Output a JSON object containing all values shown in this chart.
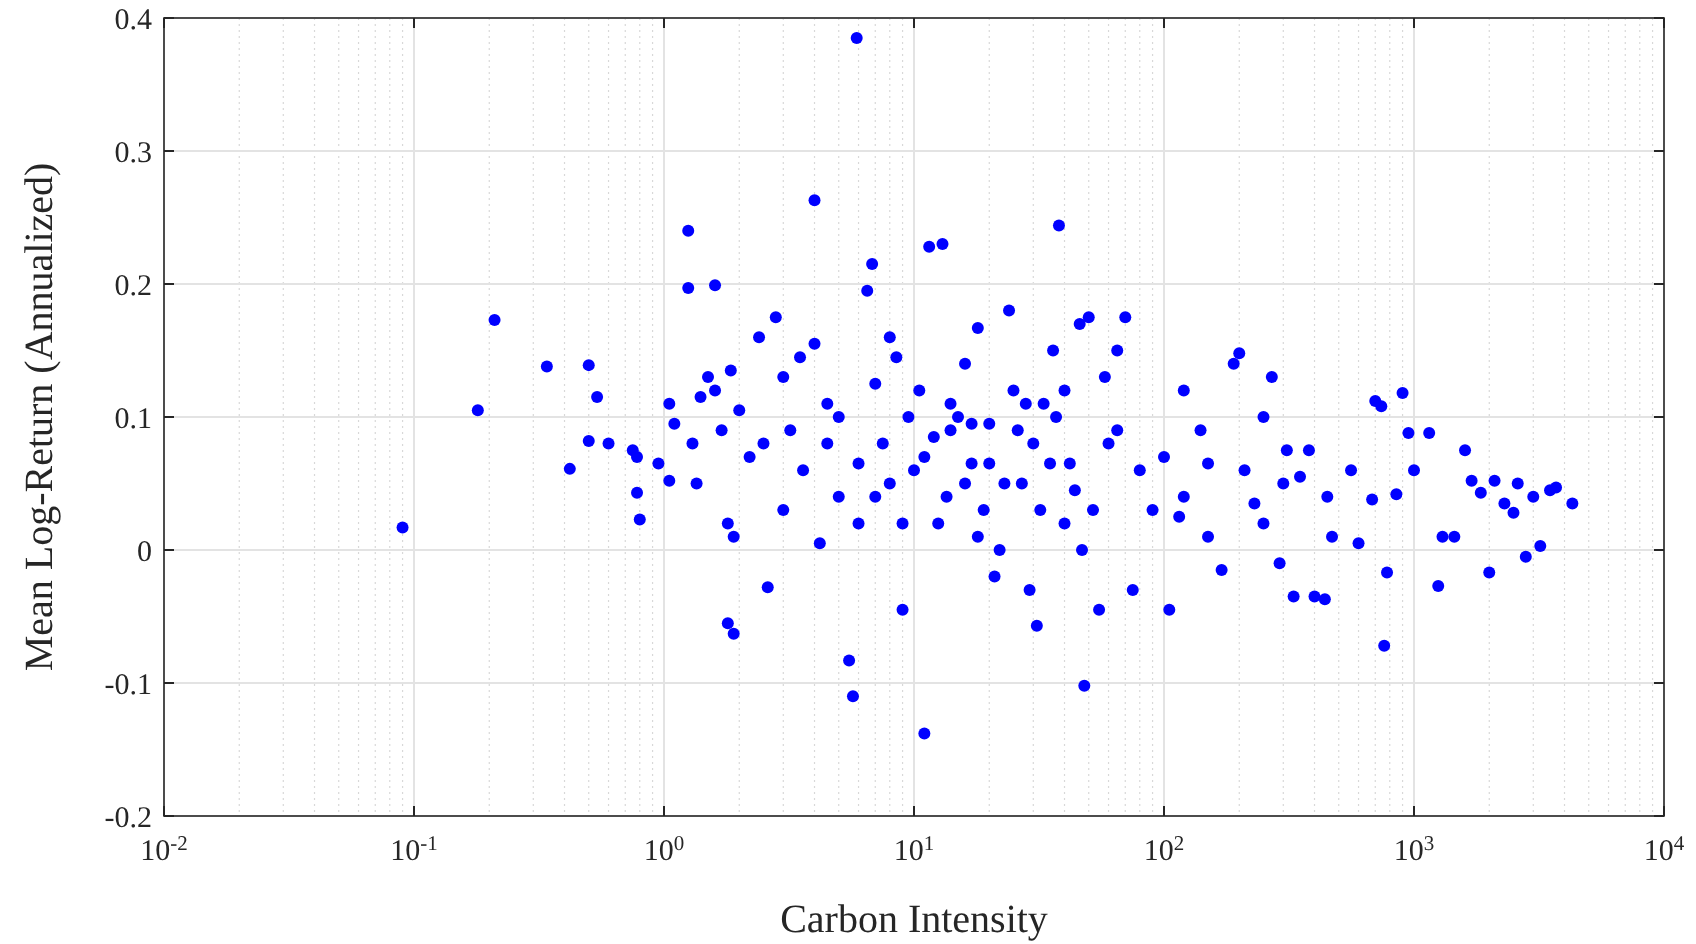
{
  "chart_data": {
    "type": "scatter",
    "xlabel": "Carbon Intensity",
    "ylabel": "Mean Log-Return (Annualized)",
    "log": "x",
    "grid": true,
    "marker": "circle",
    "xlim": [
      0.01,
      10000
    ],
    "ylim": [
      -0.2,
      0.4
    ],
    "xticks": [
      {
        "value": 0.01,
        "label": "10$^{-2}$"
      },
      {
        "value": 0.1,
        "label": "10$^{-1}$"
      },
      {
        "value": 1,
        "label": "10$^{0}$"
      },
      {
        "value": 10,
        "label": "10$^{1}$"
      },
      {
        "value": 100,
        "label": "10$^{2}$"
      },
      {
        "value": 1000,
        "label": "10$^{3}$"
      },
      {
        "value": 10000,
        "label": "10$^{4}$"
      }
    ],
    "yticks": [
      -0.2,
      -0.1,
      0,
      0.1,
      0.2,
      0.3,
      0.4
    ],
    "series": [
      {
        "color": "#0000ff",
        "x": [
          0.09,
          0.18,
          0.21,
          0.34,
          0.42,
          0.5,
          0.54,
          0.5,
          0.6,
          0.75,
          0.78,
          0.8,
          0.78,
          0.95,
          1.05,
          1.05,
          1.1,
          1.25,
          1.25,
          1.3,
          1.35,
          1.4,
          1.5,
          1.6,
          1.6,
          1.7,
          1.8,
          1.8,
          1.9,
          1.9,
          1.85,
          2.0,
          2.2,
          2.4,
          2.6,
          2.8,
          3.0,
          3.2,
          3.5,
          3.6,
          4.0,
          4.0,
          4.2,
          4.5,
          5.0,
          5.5,
          5.7,
          5.9,
          6.0,
          6.5,
          6.8,
          7.0,
          7.5,
          8.0,
          8.5,
          9.0,
          9.5,
          10,
          10.5,
          11,
          11.5,
          13,
          12,
          13.5,
          15,
          16,
          17,
          18,
          19,
          20,
          22,
          24,
          25,
          27,
          29,
          30,
          31,
          33,
          36,
          38,
          40,
          42,
          46,
          48,
          50,
          52,
          55,
          58,
          60,
          65,
          70,
          75,
          80,
          90,
          100,
          105,
          115,
          120,
          140,
          150,
          170,
          190,
          200,
          210,
          230,
          250,
          270,
          290,
          310,
          330,
          350,
          380,
          400,
          440,
          470,
          560,
          600,
          680,
          700,
          740,
          760,
          780,
          850,
          900,
          950,
          1000,
          1150,
          1250,
          1300,
          1450,
          1600,
          1700,
          1850,
          2000,
          2100,
          2300,
          2500,
          2600,
          2800,
          3000,
          3200,
          3500,
          3700,
          4300,
          11,
          12.5,
          14,
          14,
          16,
          17,
          18,
          20,
          21,
          23,
          26,
          28,
          32,
          35,
          37,
          40,
          44,
          47,
          5,
          6,
          8,
          9,
          3,
          2.5,
          4.5,
          7,
          150,
          300,
          250,
          450,
          120,
          65
        ],
        "values": [
          0.017,
          0.105,
          0.173,
          0.138,
          0.061,
          0.139,
          0.115,
          0.082,
          0.08,
          0.075,
          0.043,
          0.023,
          0.07,
          0.065,
          0.052,
          0.11,
          0.095,
          0.24,
          0.197,
          0.08,
          0.05,
          0.115,
          0.13,
          0.199,
          0.12,
          0.09,
          0.02,
          -0.055,
          -0.063,
          0.01,
          0.135,
          0.105,
          0.07,
          0.16,
          -0.028,
          0.175,
          0.13,
          0.09,
          0.145,
          0.06,
          0.263,
          0.155,
          0.005,
          0.11,
          0.04,
          -0.083,
          -0.11,
          0.385,
          0.065,
          0.195,
          0.215,
          0.125,
          0.08,
          0.16,
          0.145,
          -0.045,
          0.1,
          0.06,
          0.12,
          -0.138,
          0.228,
          0.23,
          0.085,
          0.04,
          0.1,
          0.14,
          0.065,
          0.167,
          0.03,
          0.095,
          0.0,
          0.18,
          0.12,
          0.05,
          -0.03,
          0.08,
          -0.057,
          0.11,
          0.15,
          0.244,
          0.02,
          0.065,
          0.17,
          -0.102,
          0.175,
          0.03,
          -0.045,
          0.13,
          0.08,
          0.15,
          0.175,
          -0.03,
          0.06,
          0.03,
          0.07,
          -0.045,
          0.025,
          0.04,
          0.09,
          0.065,
          -0.015,
          0.14,
          0.148,
          0.06,
          0.035,
          0.1,
          0.13,
          -0.01,
          0.075,
          -0.035,
          0.055,
          0.075,
          -0.035,
          -0.037,
          0.01,
          0.06,
          0.005,
          0.038,
          0.112,
          0.108,
          -0.072,
          -0.017,
          0.042,
          0.118,
          0.088,
          0.06,
          0.088,
          -0.027,
          0.01,
          0.01,
          0.075,
          0.052,
          0.043,
          -0.017,
          0.052,
          0.035,
          0.028,
          0.05,
          -0.005,
          0.04,
          0.003,
          0.045,
          0.047,
          0.035,
          0.07,
          0.02,
          0.09,
          0.11,
          0.05,
          0.095,
          0.01,
          0.065,
          -0.02,
          0.05,
          0.09,
          0.11,
          0.03,
          0.065,
          0.1,
          0.12,
          0.045,
          0.0,
          0.1,
          0.02,
          0.05,
          0.02,
          0.03,
          0.08,
          0.08,
          0.04,
          0.01,
          0.05,
          0.02,
          0.04,
          0.12,
          0.09
        ]
      }
    ]
  }
}
